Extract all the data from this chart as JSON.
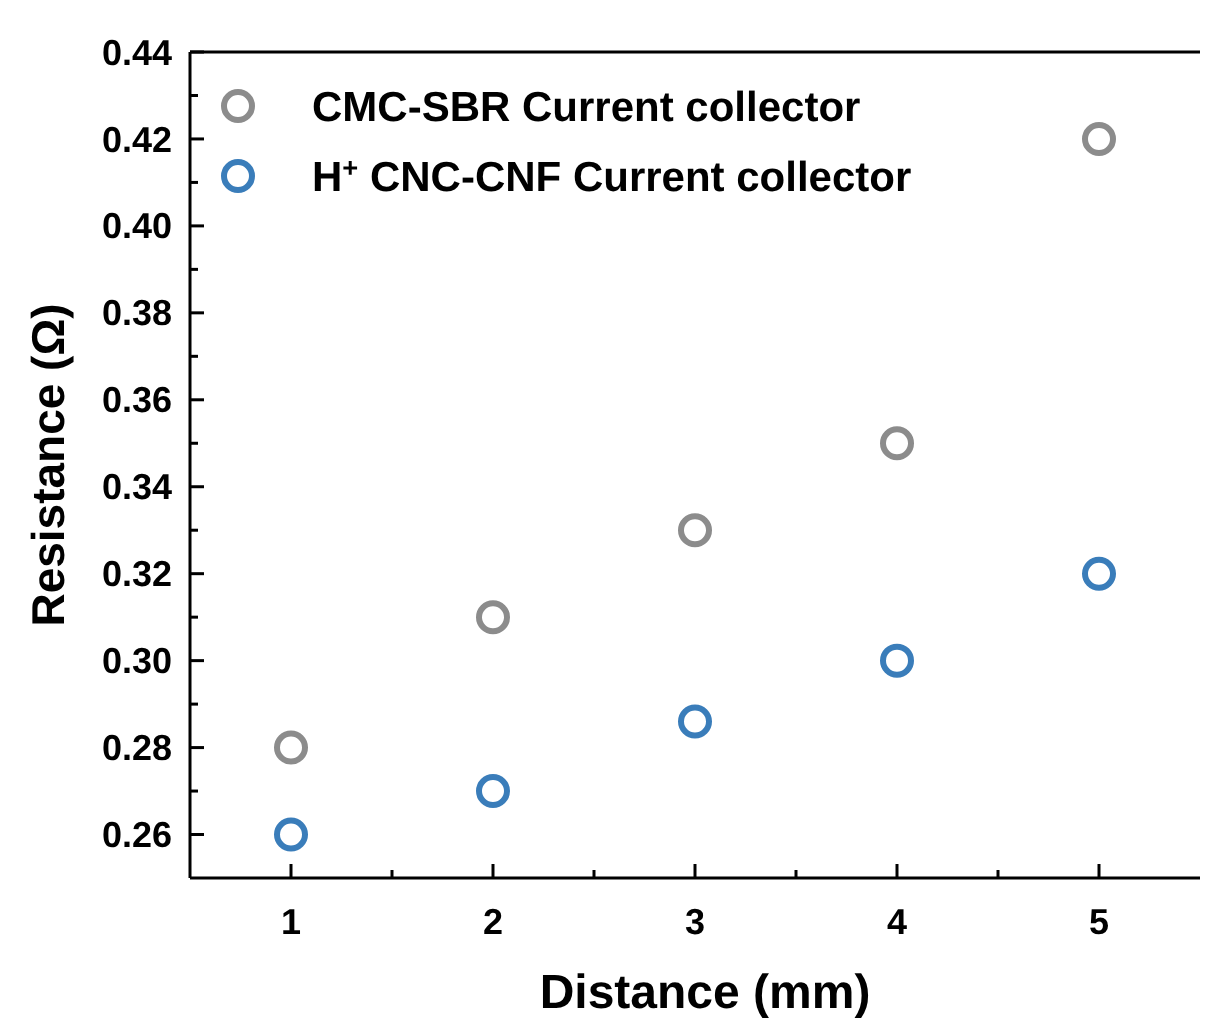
{
  "chart_data": {
    "type": "scatter",
    "xlabel": "Distance (mm)",
    "ylabel": "Resistance (Ω)",
    "x": [
      1,
      2,
      3,
      4,
      5
    ],
    "series": [
      {
        "name": "CMC-SBR Current collector",
        "color": "#8c8c8c",
        "values": [
          0.28,
          0.31,
          0.33,
          0.35,
          0.42
        ]
      },
      {
        "name": "H$^{+}$ CNC-CNF Current collector",
        "color": "#3a7dba",
        "values": [
          0.26,
          0.27,
          0.286,
          0.3,
          0.32
        ]
      }
    ],
    "xlim": [
      0.5,
      5.5
    ],
    "xticks": [
      1,
      {
        "value": 1.5,
        "label": null
      },
      2,
      {
        "value": 2.5,
        "label": null
      },
      3,
      {
        "value": 3.5,
        "label": null
      },
      4,
      {
        "value": 4.5,
        "label": null
      },
      5
    ],
    "ylim": [
      0.25,
      0.44
    ],
    "yticks": [
      0.26,
      {
        "value": 0.27,
        "label": null
      },
      0.28,
      {
        "value": 0.29,
        "label": null
      },
      {
        "value": 0.3,
        "label": "0.30"
      },
      {
        "value": 0.31,
        "label": null
      },
      0.32,
      {
        "value": 0.33,
        "label": null
      },
      0.34,
      {
        "value": 0.35,
        "label": null
      },
      0.36,
      {
        "value": 0.37,
        "label": null
      },
      0.38,
      {
        "value": 0.39,
        "label": null
      },
      {
        "value": 0.4,
        "label": "0.40"
      },
      {
        "value": 0.41,
        "label": null
      },
      0.42,
      {
        "value": 0.43,
        "label": null
      },
      0.44
    ],
    "marker": "circle",
    "grid": false,
    "legend": "top left"
  }
}
